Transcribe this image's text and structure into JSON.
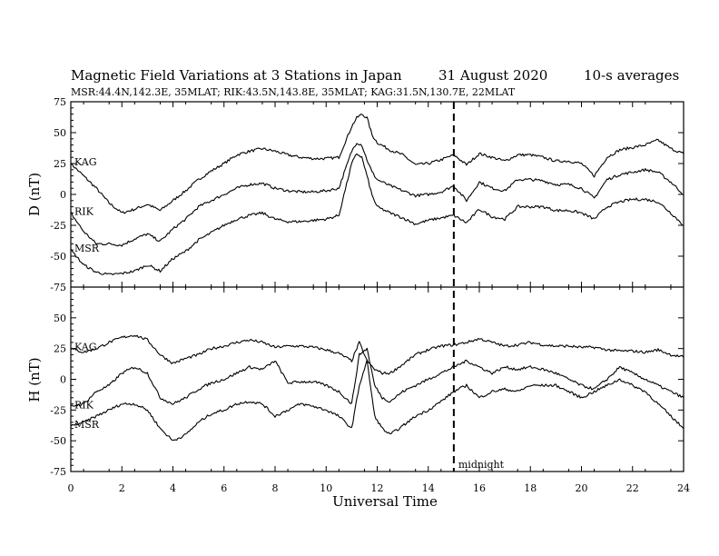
{
  "header": {
    "title": "Magnetic Field Variations at 3 Stations in Japan",
    "date": "31  August  2020",
    "averaging": "10-s averages",
    "stations_line": "MSR:44.4N,142.3E, 35MLAT;  RIK:43.5N,143.8E, 35MLAT;  KAG:31.5N,130.7E, 22MLAT"
  },
  "chart_data": [
    {
      "type": "line",
      "panel": "D",
      "ylabel": "D (nT)",
      "ylim": [
        -75,
        75
      ],
      "yticks": [
        "75",
        "50",
        "25",
        "0",
        "-25",
        "-50",
        "-75"
      ],
      "xlim": [
        0,
        24
      ],
      "midnight_marker": 15,
      "series": [
        {
          "name": "KAG",
          "x": [
            0,
            0.5,
            1,
            1.5,
            2,
            2.5,
            3,
            3.5,
            4,
            4.5,
            5,
            5.5,
            6,
            6.5,
            7,
            7.5,
            8,
            8.5,
            9,
            9.5,
            10,
            10.5,
            11,
            11.2,
            11.4,
            11.6,
            11.8,
            12,
            12.5,
            13,
            13.5,
            14,
            14.5,
            15,
            15.5,
            16,
            16.5,
            17,
            17.5,
            18,
            18.5,
            19,
            19.5,
            20,
            20.5,
            21,
            21.5,
            22,
            22.5,
            23,
            23.5,
            24
          ],
          "values": [
            25,
            15,
            5,
            -7,
            -15,
            -12,
            -8,
            -13,
            -5,
            3,
            12,
            19,
            25,
            32,
            35,
            37,
            35,
            32,
            30,
            29,
            29,
            30,
            55,
            62,
            65,
            62,
            48,
            42,
            36,
            32,
            24,
            25,
            28,
            32,
            24,
            33,
            30,
            27,
            32,
            32,
            30,
            27,
            27,
            25,
            15,
            30,
            36,
            38,
            40,
            44,
            37,
            33
          ]
        },
        {
          "name": "RIK",
          "x": [
            0,
            0.5,
            1,
            1.5,
            2,
            2.5,
            3,
            3.5,
            4,
            4.5,
            5,
            5.5,
            6,
            6.5,
            7,
            7.5,
            8,
            8.5,
            9,
            9.5,
            10,
            10.5,
            11,
            11.2,
            11.4,
            11.6,
            11.8,
            12,
            12.5,
            13,
            13.5,
            14,
            14.5,
            15,
            15.5,
            16,
            16.5,
            17,
            17.5,
            18,
            18.5,
            19,
            19.5,
            20,
            20.5,
            21,
            21.5,
            22,
            22.5,
            23,
            23.5,
            24
          ],
          "values": [
            -15,
            -30,
            -40,
            -40,
            -41,
            -36,
            -32,
            -38,
            -28,
            -20,
            -10,
            -5,
            0,
            5,
            8,
            9,
            5,
            3,
            2,
            2,
            3,
            5,
            35,
            42,
            40,
            28,
            18,
            12,
            7,
            3,
            -1,
            0,
            2,
            7,
            -5,
            10,
            5,
            3,
            12,
            12,
            11,
            8,
            8,
            5,
            -3,
            12,
            16,
            18,
            20,
            18,
            10,
            0
          ]
        },
        {
          "name": "MSR",
          "x": [
            0,
            0.5,
            1,
            1.5,
            2,
            2.5,
            3,
            3.5,
            4,
            4.5,
            5,
            5.5,
            6,
            6.5,
            7,
            7.5,
            8,
            8.5,
            9,
            9.5,
            10,
            10.5,
            11,
            11.2,
            11.4,
            11.6,
            11.8,
            12,
            12.5,
            13,
            13.5,
            14,
            14.5,
            15,
            15.5,
            16,
            16.5,
            17,
            17.5,
            18,
            18.5,
            19,
            19.5,
            20,
            20.5,
            21,
            21.5,
            22,
            22.5,
            23,
            23.5,
            24
          ],
          "values": [
            -45,
            -57,
            -63,
            -65,
            -64,
            -62,
            -57,
            -62,
            -52,
            -46,
            -37,
            -31,
            -25,
            -20,
            -17,
            -15,
            -20,
            -22,
            -22,
            -21,
            -20,
            -17,
            25,
            33,
            30,
            15,
            -1,
            -10,
            -15,
            -19,
            -24,
            -21,
            -19,
            -17,
            -23,
            -12,
            -18,
            -20,
            -10,
            -10,
            -10,
            -13,
            -13,
            -15,
            -20,
            -10,
            -6,
            -4,
            -4,
            -6,
            -15,
            -25
          ]
        }
      ]
    },
    {
      "type": "line",
      "panel": "H",
      "ylabel": "H (nT)",
      "ylim": [
        -75,
        75
      ],
      "yticks": [
        "75",
        "50",
        "25",
        "0",
        "-25",
        "-50",
        "-75"
      ],
      "xlim": [
        0,
        24
      ],
      "midnight_marker": 15,
      "series": [
        {
          "name": "KAG",
          "x": [
            0,
            0.5,
            1,
            1.5,
            2,
            2.5,
            3,
            3.5,
            4,
            4.5,
            5,
            5.5,
            6,
            6.5,
            7,
            7.5,
            8,
            8.5,
            9,
            9.5,
            10,
            10.5,
            11,
            11.3,
            11.6,
            11.9,
            12.2,
            12.5,
            13,
            13.5,
            14,
            14.5,
            15,
            15.5,
            16,
            16.5,
            17,
            17.5,
            18,
            18.5,
            19,
            19.5,
            20,
            20.5,
            21,
            21.5,
            22,
            22.5,
            23,
            23.5,
            24
          ],
          "values": [
            25,
            22,
            25,
            30,
            34,
            36,
            32,
            20,
            13,
            17,
            20,
            25,
            27,
            30,
            32,
            30,
            26,
            27,
            27,
            26,
            24,
            21,
            15,
            30,
            15,
            8,
            5,
            5,
            12,
            20,
            24,
            27,
            28,
            30,
            33,
            30,
            27,
            28,
            30,
            28,
            27,
            27,
            26,
            26,
            24,
            23,
            23,
            22,
            24,
            20,
            18
          ]
        },
        {
          "name": "RIK",
          "x": [
            0,
            0.5,
            1,
            1.5,
            2,
            2.5,
            3,
            3.5,
            4,
            4.5,
            5,
            5.5,
            6,
            6.5,
            7,
            7.5,
            8,
            8.5,
            9,
            9.5,
            10,
            10.5,
            11,
            11.3,
            11.6,
            11.9,
            12.2,
            12.5,
            13,
            13.5,
            14,
            14.5,
            15,
            15.5,
            16,
            16.5,
            17,
            17.5,
            18,
            18.5,
            19,
            19.5,
            20,
            20.5,
            21,
            21.5,
            22,
            22.5,
            23,
            23.5,
            24
          ],
          "values": [
            -22,
            -20,
            -10,
            -5,
            5,
            10,
            5,
            -15,
            -20,
            -15,
            -8,
            -3,
            0,
            5,
            10,
            8,
            15,
            -3,
            -2,
            -2,
            -5,
            -10,
            -20,
            20,
            25,
            -5,
            -15,
            -18,
            -10,
            -5,
            0,
            5,
            10,
            15,
            10,
            5,
            10,
            8,
            10,
            8,
            5,
            0,
            -5,
            -8,
            0,
            10,
            5,
            0,
            -5,
            -10,
            -15
          ]
        },
        {
          "name": "MSR",
          "x": [
            0,
            0.5,
            1,
            1.5,
            2,
            2.5,
            3,
            3.5,
            4,
            4.5,
            5,
            5.5,
            6,
            6.5,
            7,
            7.5,
            8,
            8.5,
            9,
            9.5,
            10,
            10.5,
            11,
            11.3,
            11.6,
            11.9,
            12.2,
            12.5,
            13,
            13.5,
            14,
            14.5,
            15,
            15.5,
            16,
            16.5,
            17,
            17.5,
            18,
            18.5,
            19,
            19.5,
            20,
            20.5,
            21,
            21.5,
            22,
            22.5,
            23,
            23.5,
            24
          ],
          "values": [
            -38,
            -35,
            -30,
            -25,
            -20,
            -20,
            -25,
            -40,
            -50,
            -45,
            -35,
            -28,
            -25,
            -20,
            -18,
            -20,
            -30,
            -25,
            -20,
            -22,
            -25,
            -30,
            -40,
            -5,
            15,
            -30,
            -40,
            -45,
            -38,
            -30,
            -25,
            -18,
            -10,
            -5,
            -15,
            -10,
            -8,
            -10,
            -5,
            -5,
            -5,
            -10,
            -15,
            -10,
            -5,
            0,
            -5,
            -10,
            -20,
            -30,
            -40
          ]
        }
      ]
    }
  ],
  "x_axis": {
    "label": "Universal Time",
    "ticks": [
      "0",
      "2",
      "4",
      "6",
      "8",
      "10",
      "12",
      "14",
      "16",
      "18",
      "20",
      "22",
      "24"
    ]
  },
  "annotation": {
    "midnight_label": "midnight"
  }
}
